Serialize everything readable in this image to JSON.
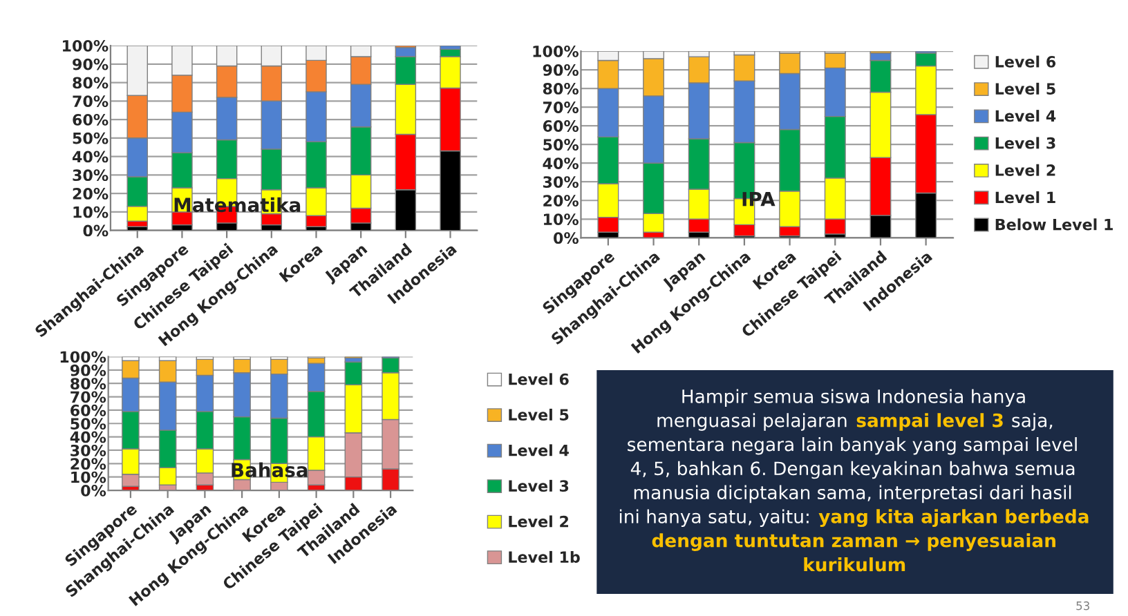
{
  "chart_data": [
    {
      "type": "bar",
      "stacked": true,
      "title": "Matematika",
      "categories": [
        "Shanghai-China",
        "Singapore",
        "Chinese Taipei",
        "Hong Kong-China",
        "Korea",
        "Japan",
        "Thailand",
        "Indonesia"
      ],
      "ylim": [
        0,
        100
      ],
      "yticks": [
        {
          "value": 0,
          "label": "0%"
        },
        {
          "value": 10,
          "label": "10%"
        },
        {
          "value": 20,
          "label": "20%"
        },
        {
          "value": 30,
          "label": "30%"
        },
        {
          "value": 40,
          "label": "40%"
        },
        {
          "value": 50,
          "label": "50%"
        },
        {
          "value": 60,
          "label": "60%"
        },
        {
          "value": 70,
          "label": "70%"
        },
        {
          "value": 80,
          "label": "80%"
        },
        {
          "value": 90,
          "label": "90%"
        },
        {
          "value": 100,
          "label": "100%"
        }
      ],
      "grid": "y",
      "legend": false,
      "series": [
        {
          "color": "#000000",
          "values": [
            2,
            3,
            4,
            3,
            2,
            4,
            22,
            43
          ]
        },
        {
          "color": "#ff0000",
          "values": [
            3,
            7,
            9,
            6,
            6,
            8,
            30,
            34
          ]
        },
        {
          "color": "#ffff00",
          "values": [
            8,
            13,
            15,
            13,
            15,
            18,
            27,
            17
          ]
        },
        {
          "color": "#00a550",
          "values": [
            16,
            19,
            21,
            22,
            25,
            26,
            15,
            4
          ]
        },
        {
          "color": "#4f81d0",
          "values": [
            21,
            22,
            23,
            26,
            27,
            23,
            5,
            2
          ]
        },
        {
          "color": "#f58232",
          "values": [
            23,
            20,
            17,
            19,
            17,
            15,
            1,
            0
          ]
        },
        {
          "color": "#f2f2f2",
          "values": [
            27,
            16,
            11,
            11,
            8,
            6,
            0,
            0
          ]
        }
      ]
    },
    {
      "type": "bar",
      "stacked": true,
      "title": "IPA",
      "categories": [
        "Singapore",
        "Shanghai-China",
        "Japan",
        "Hong Kong-China",
        "Korea",
        "Chinese Taipei",
        "Thailand",
        "Indonesia"
      ],
      "ylim": [
        0,
        100
      ],
      "yticks": [
        {
          "value": 0,
          "label": "0%"
        },
        {
          "value": 10,
          "label": "10%"
        },
        {
          "value": 20,
          "label": "20%"
        },
        {
          "value": 30,
          "label": "30%"
        },
        {
          "value": 40,
          "label": "40%"
        },
        {
          "value": 50,
          "label": "50%"
        },
        {
          "value": 60,
          "label": "60%"
        },
        {
          "value": 70,
          "label": "70%"
        },
        {
          "value": 80,
          "label": "80%"
        },
        {
          "value": 90,
          "label": "90%"
        },
        {
          "value": 100,
          "label": "100%"
        }
      ],
      "grid": "y",
      "legend": "right",
      "series": [
        {
          "name": "Below Level 1",
          "color": "#000000",
          "values": [
            3,
            0,
            3,
            1,
            1,
            2,
            12,
            24
          ]
        },
        {
          "name": "Level 1",
          "color": "#ff0000",
          "values": [
            8,
            3,
            7,
            6,
            5,
            8,
            31,
            42
          ]
        },
        {
          "name": "Level 2",
          "color": "#ffff00",
          "values": [
            18,
            10,
            16,
            14,
            19,
            22,
            35,
            26
          ]
        },
        {
          "name": "Level 3",
          "color": "#00a550",
          "values": [
            25,
            27,
            27,
            30,
            33,
            33,
            17,
            7
          ]
        },
        {
          "name": "Level 4",
          "color": "#4f81d0",
          "values": [
            26,
            36,
            30,
            33,
            30,
            26,
            4,
            1
          ]
        },
        {
          "name": "Level 5",
          "color": "#f8b323",
          "values": [
            15,
            20,
            14,
            14,
            11,
            8,
            1,
            0
          ]
        },
        {
          "name": "Level 6",
          "color": "#f2f2f2",
          "values": [
            5,
            4,
            3,
            2,
            1,
            1,
            0,
            0
          ]
        }
      ]
    },
    {
      "type": "bar",
      "stacked": true,
      "title": "Bahasa",
      "categories": [
        "Singapore",
        "Shanghai-China",
        "Japan",
        "Hong Kong-China",
        "Korea",
        "Chinese Taipei",
        "Thailand",
        "Indonesia"
      ],
      "ylim": [
        0,
        100
      ],
      "yticks": [
        {
          "value": 0,
          "label": "0%"
        },
        {
          "value": 10,
          "label": "10%"
        },
        {
          "value": 20,
          "label": "20%"
        },
        {
          "value": 30,
          "label": "30%"
        },
        {
          "value": 40,
          "label": "40%"
        },
        {
          "value": 50,
          "label": "50%"
        },
        {
          "value": 60,
          "label": "60%"
        },
        {
          "value": 70,
          "label": "70%"
        },
        {
          "value": 80,
          "label": "80%"
        },
        {
          "value": 90,
          "label": "90%"
        },
        {
          "value": 100,
          "label": "100%"
        }
      ],
      "grid": "y",
      "legend": "right",
      "series": [
        {
          "color": "#ee1111",
          "values": [
            3,
            null,
            4,
            null,
            null,
            4,
            10,
            16
          ]
        },
        {
          "name": "Level 1b",
          "color": "#d99594",
          "values": [
            9,
            4,
            9,
            8,
            6,
            11,
            33,
            37
          ]
        },
        {
          "name": "Level 2",
          "color": "#ffff00",
          "values": [
            19,
            13,
            18,
            15,
            14,
            25,
            36,
            35
          ]
        },
        {
          "name": "Level 3",
          "color": "#00a550",
          "values": [
            28,
            28,
            28,
            32,
            34,
            34,
            17,
            11
          ]
        },
        {
          "name": "Level 4",
          "color": "#4f81d0",
          "values": [
            25,
            36,
            27,
            33,
            33,
            21,
            3,
            1
          ]
        },
        {
          "name": "Level 5",
          "color": "#f8b323",
          "values": [
            13,
            16,
            12,
            10,
            11,
            4,
            1,
            0
          ]
        },
        {
          "name": "Level 6",
          "color": "#ffffff",
          "values": [
            3,
            3,
            2,
            2,
            2,
            1,
            0,
            0
          ]
        }
      ]
    },
    {
      "type": "other",
      "annotations": [
        "Hampir semua siswa Indonesia hanya\nmenguasai pelajaran ",
        "sampai level 3",
        " saja,\nsementara negara lain banyak yang sampai level\n4, 5, bahkan 6. Dengan keyakinan bahwa semua\nmanusia diciptakan sama, interpretasi dari hasil\nini hanya satu, yaitu: ",
        "yang kita ajarkan berbeda\ndengan tuntutan zaman → penyesuaian\nkurikulum"
      ]
    },
    {
      "type": "other",
      "annotations": [
        "53"
      ]
    }
  ]
}
